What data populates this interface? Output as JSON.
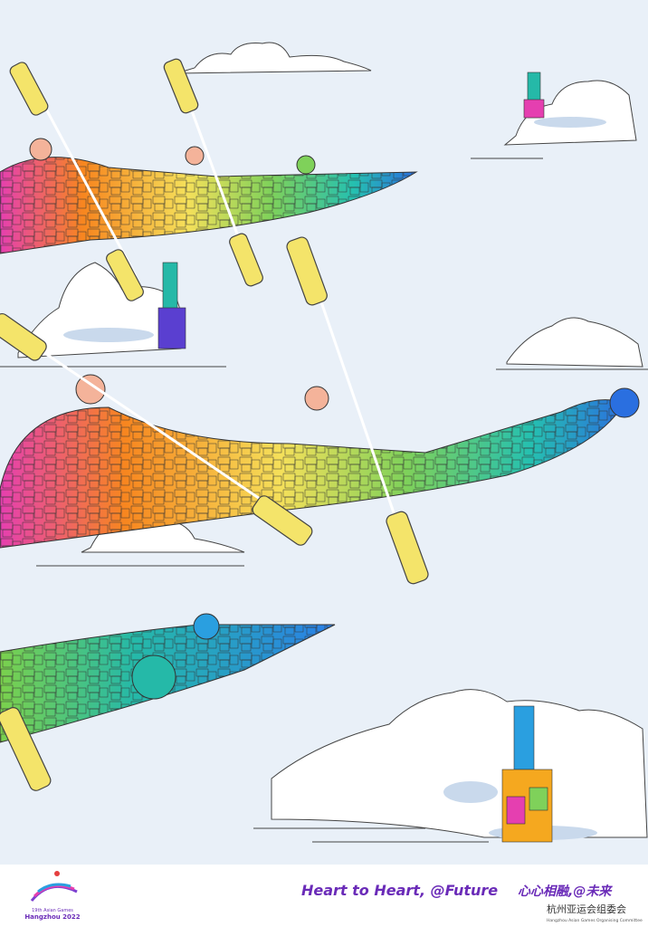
{
  "logo": {
    "line1": "19th Asian Games",
    "line2": "Hangzhou 2022"
  },
  "footer": {
    "slogan_en": "Heart to Heart, @Future",
    "slogan_cn": "心心相融,@未来",
    "org_cn": "杭州亚运会组委会",
    "org_en": "Hangzhou Asian Games Organising Committee"
  }
}
